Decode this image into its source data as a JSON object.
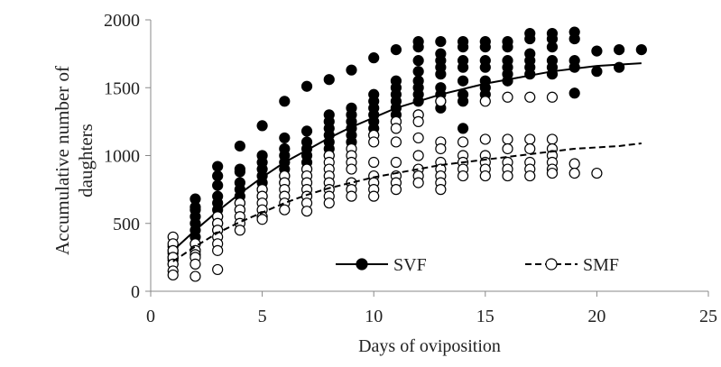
{
  "chart_data": {
    "type": "scatter",
    "x_label": "Days of oviposition",
    "y_label": "Accumulative number of daughters",
    "xlim": [
      0,
      25
    ],
    "xticks": [
      0,
      5,
      10,
      15,
      20,
      25
    ],
    "ylim": [
      0,
      2000
    ],
    "yticks": [
      0,
      500,
      1000,
      1500,
      2000
    ],
    "grid": false,
    "legend": "bottom",
    "series": [
      {
        "name": "SVF",
        "color": "#000000",
        "fill": "#000000",
        "dashed": false,
        "x": [
          1,
          1,
          1,
          1,
          1,
          1,
          2,
          2,
          2,
          2,
          2,
          2,
          2,
          2,
          2,
          3,
          3,
          3,
          3,
          3,
          3,
          3,
          3,
          3,
          4,
          4,
          4,
          4,
          4,
          4,
          4,
          4,
          5,
          5,
          5,
          5,
          5,
          5,
          5,
          5,
          6,
          6,
          6,
          6,
          6,
          6,
          6,
          6,
          7,
          7,
          7,
          7,
          7,
          7,
          7,
          8,
          8,
          8,
          8,
          8,
          8,
          8,
          8,
          9,
          9,
          9,
          9,
          9,
          9,
          9,
          10,
          10,
          10,
          10,
          10,
          10,
          10,
          10,
          11,
          11,
          11,
          11,
          11,
          11,
          11,
          11,
          12,
          12,
          12,
          12,
          12,
          12,
          12,
          12,
          12,
          13,
          13,
          13,
          13,
          13,
          13,
          13,
          13,
          13,
          14,
          14,
          14,
          14,
          14,
          14,
          14,
          14,
          15,
          15,
          15,
          15,
          15,
          15,
          15,
          16,
          16,
          16,
          16,
          16,
          16,
          17,
          17,
          17,
          17,
          17,
          17,
          18,
          18,
          18,
          18,
          18,
          18,
          19,
          19,
          19,
          19,
          19,
          20,
          20,
          21,
          21,
          22
        ],
        "values": [
          200,
          250,
          300,
          330,
          280,
          230,
          680,
          600,
          550,
          500,
          450,
          400,
          350,
          300,
          620,
          920,
          850,
          780,
          700,
          650,
          600,
          550,
          500,
          450,
          1070,
          900,
          880,
          800,
          750,
          700,
          650,
          600,
          1220,
          1000,
          950,
          900,
          850,
          800,
          750,
          700,
          1400,
          1130,
          1050,
          1000,
          950,
          900,
          850,
          800,
          1510,
          1180,
          1100,
          1050,
          1000,
          950,
          900,
          1560,
          1300,
          1250,
          1200,
          1150,
          1100,
          1050,
          1000,
          1630,
          1350,
          1300,
          1250,
          1200,
          1150,
          1100,
          1720,
          1450,
          1400,
          1350,
          1300,
          1250,
          1200,
          1150,
          1780,
          1550,
          1500,
          1450,
          1400,
          1350,
          1300,
          1250,
          1840,
          1800,
          1700,
          1620,
          1550,
          1500,
          1450,
          1400,
          1300,
          1840,
          1750,
          1700,
          1650,
          1600,
          1500,
          1450,
          1400,
          1350,
          1840,
          1800,
          1700,
          1650,
          1550,
          1450,
          1400,
          1200,
          1840,
          1800,
          1700,
          1650,
          1550,
          1500,
          1450,
          1840,
          1800,
          1700,
          1650,
          1600,
          1550,
          1900,
          1860,
          1750,
          1700,
          1650,
          1600,
          1900,
          1860,
          1800,
          1700,
          1650,
          1600,
          1910,
          1860,
          1700,
          1650,
          1460,
          1770,
          1620,
          1780,
          1650,
          1780
        ],
        "fit": {
          "x": [
            1,
            2,
            3,
            4,
            5,
            6,
            7,
            8,
            9,
            10,
            11,
            12,
            13,
            14,
            15,
            16,
            17,
            18,
            19,
            20,
            21,
            22
          ],
          "values": [
            300,
            450,
            590,
            720,
            840,
            950,
            1040,
            1130,
            1210,
            1280,
            1350,
            1400,
            1450,
            1490,
            1530,
            1560,
            1590,
            1620,
            1640,
            1660,
            1670,
            1680
          ]
        }
      },
      {
        "name": "SMF",
        "color": "#000000",
        "fill": "#ffffff",
        "dashed": true,
        "x": [
          1,
          1,
          1,
          1,
          1,
          1,
          1,
          2,
          2,
          2,
          2,
          2,
          2,
          3,
          3,
          3,
          3,
          3,
          3,
          3,
          4,
          4,
          4,
          4,
          4,
          5,
          5,
          5,
          5,
          5,
          5,
          6,
          6,
          6,
          6,
          6,
          6,
          7,
          7,
          7,
          7,
          7,
          7,
          7,
          8,
          8,
          8,
          8,
          8,
          8,
          8,
          8,
          9,
          9,
          9,
          9,
          9,
          9,
          9,
          10,
          10,
          10,
          10,
          10,
          10,
          10,
          11,
          11,
          11,
          11,
          11,
          11,
          11,
          12,
          12,
          12,
          12,
          12,
          12,
          12,
          13,
          13,
          13,
          13,
          13,
          13,
          13,
          13,
          14,
          14,
          14,
          14,
          14,
          15,
          15,
          15,
          15,
          15,
          15,
          16,
          16,
          16,
          16,
          16,
          16,
          17,
          17,
          17,
          17,
          17,
          17,
          18,
          18,
          18,
          18,
          18,
          18,
          18,
          19,
          19,
          20
        ],
        "values": [
          400,
          350,
          300,
          250,
          200,
          150,
          120,
          350,
          300,
          270,
          250,
          200,
          110,
          550,
          500,
          450,
          400,
          350,
          300,
          160,
          650,
          600,
          550,
          500,
          450,
          750,
          700,
          650,
          600,
          550,
          530,
          850,
          800,
          750,
          700,
          650,
          600,
          900,
          850,
          800,
          750,
          700,
          650,
          590,
          1000,
          950,
          900,
          850,
          800,
          750,
          700,
          650,
          1050,
          1000,
          950,
          900,
          800,
          750,
          700,
          1150,
          1100,
          950,
          850,
          800,
          750,
          700,
          1250,
          1200,
          1100,
          950,
          850,
          800,
          750,
          1300,
          1250,
          1130,
          1000,
          900,
          850,
          800,
          1400,
          1100,
          1050,
          950,
          900,
          850,
          800,
          750,
          1100,
          1000,
          950,
          900,
          850,
          1400,
          1120,
          1000,
          950,
          900,
          850,
          1430,
          1120,
          1050,
          950,
          900,
          850,
          1430,
          1120,
          1050,
          950,
          900,
          850,
          1430,
          1120,
          1050,
          1000,
          950,
          900,
          870,
          940,
          870,
          870
        ],
        "fit": {
          "x": [
            1,
            2,
            3,
            4,
            5,
            6,
            7,
            8,
            9,
            10,
            11,
            12,
            13,
            14,
            15,
            16,
            17,
            18,
            19,
            20,
            21,
            22
          ],
          "values": [
            220,
            330,
            430,
            510,
            580,
            650,
            710,
            760,
            800,
            840,
            870,
            900,
            930,
            950,
            970,
            990,
            1010,
            1030,
            1050,
            1060,
            1070,
            1090
          ]
        }
      }
    ]
  }
}
